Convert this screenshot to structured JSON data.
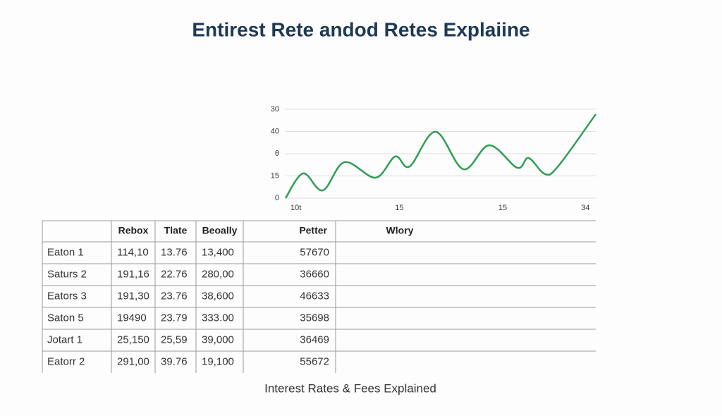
{
  "chart_data": {
    "type": "line",
    "title": "Entirest Rete andod Retes Explaiine",
    "x": [
      0,
      1.7,
      3.6,
      5.7,
      8.7,
      10.6,
      12.0,
      14.5,
      17.2,
      19.7,
      22.4,
      23.5,
      25.1,
      26.4,
      30
    ],
    "series": [
      {
        "color": "#2e9e55",
        "values": [
          0,
          16.7,
          5.2,
          24.3,
          13.8,
          28.1,
          21.4,
          44.8,
          19.5,
          35.7,
          20.5,
          27.1,
          16.2,
          21.9,
          56.7
        ]
      }
    ],
    "xlim": [
      0,
      30
    ],
    "ylim": [
      0,
      60
    ],
    "xticks": [
      {
        "value": 1,
        "label": "10t"
      },
      {
        "value": 11,
        "label": "15"
      },
      {
        "value": 21,
        "label": "15"
      },
      {
        "value": 29,
        "label": "34"
      }
    ],
    "yticks": [
      0,
      15,
      {
        "value": 30,
        "label": "θ"
      },
      {
        "value": 45,
        "label": "40"
      },
      {
        "value": 60,
        "label": "30"
      }
    ],
    "grid": true
  },
  "table": {
    "columns": [
      "Rebox",
      "Tlate",
      "Beoally",
      "Petter",
      "Wlory"
    ],
    "rows": [
      [
        "Eaton 1",
        "114,10",
        "13.76",
        "13,400",
        "57670"
      ],
      [
        "Saturs 2",
        "191,16",
        "22.76",
        "280,00",
        "36660"
      ],
      [
        "Eators 3",
        "191,30",
        "23.76",
        "38,600",
        "46633"
      ],
      [
        "Saton 5",
        "19490",
        "23.79",
        "333.00",
        "35698"
      ],
      [
        "Jotart 1",
        "25,150",
        "25,59",
        "39,000",
        "36469"
      ],
      [
        "Eatorr 2",
        "291,00",
        "39.76",
        "19,100",
        "55672"
      ]
    ]
  },
  "caption": "Interest Rates & Fees Explained"
}
